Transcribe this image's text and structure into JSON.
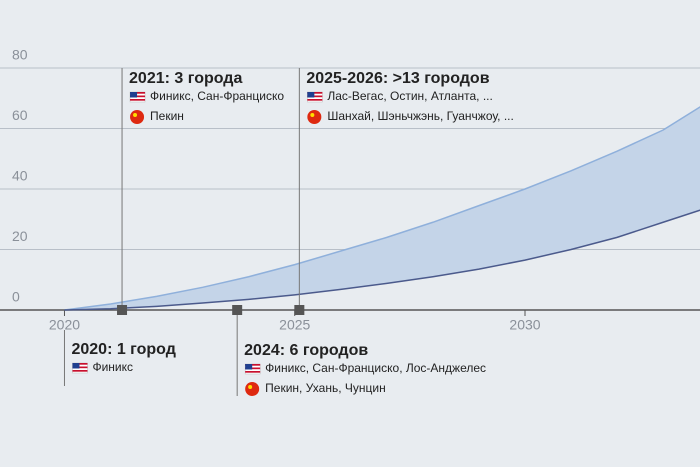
{
  "chart_data": {
    "type": "band",
    "x": [
      2020,
      2021,
      2022,
      2023,
      2024,
      2025,
      2026,
      2027,
      2028,
      2029,
      2030,
      2031,
      2032,
      2033,
      2034
    ],
    "series": [
      {
        "color": "#8fb0db",
        "values": [
          0,
          2,
          4.5,
          7.5,
          11,
          15,
          19.5,
          24,
          29,
          34.5,
          40,
          46,
          52.5,
          59.5,
          69
        ]
      },
      {
        "color": "#4b5a8c",
        "values": [
          0,
          0.4,
          1.2,
          2.3,
          3.5,
          5,
          6.8,
          8.8,
          11,
          13.5,
          16.5,
          20,
          24,
          29,
          34
        ]
      }
    ],
    "band_color": "#c4d4e8",
    "xlim": [
      2018.6,
      2033.8
    ],
    "ylim": [
      0,
      80
    ],
    "xticks": [
      2020,
      2025,
      2030
    ],
    "yticks": [
      0,
      20,
      40,
      60,
      80
    ],
    "grid": true,
    "annotations": [
      {
        "x": 2020,
        "title": "2020: 1 город",
        "rows": [
          {
            "flag": "us",
            "text": "Финикс"
          }
        ]
      },
      {
        "x": 2021.25,
        "title": "2021: 3 города",
        "rows": [
          {
            "flag": "us",
            "text": "Финикс, Сан-Франциско"
          },
          {
            "flag": "cn",
            "text": "Пекин"
          }
        ]
      },
      {
        "x": 2023.75,
        "title": "2024: 6 городов",
        "rows": [
          {
            "flag": "us",
            "text": "Финикс, Сан-Франциско, Лос-Анджелес"
          },
          {
            "flag": "cn",
            "text": "Пекин, Ухань, Чунцин"
          }
        ]
      },
      {
        "x": 2025.1,
        "title": "2025-2026: >13 городов",
        "rows": [
          {
            "flag": "us",
            "text": "Лас-Вегас, Остин, Атланта, ..."
          },
          {
            "flag": "cn",
            "text": "Шанхай, Шэньчжэнь, Гуанчжоу, ..."
          }
        ]
      }
    ]
  }
}
